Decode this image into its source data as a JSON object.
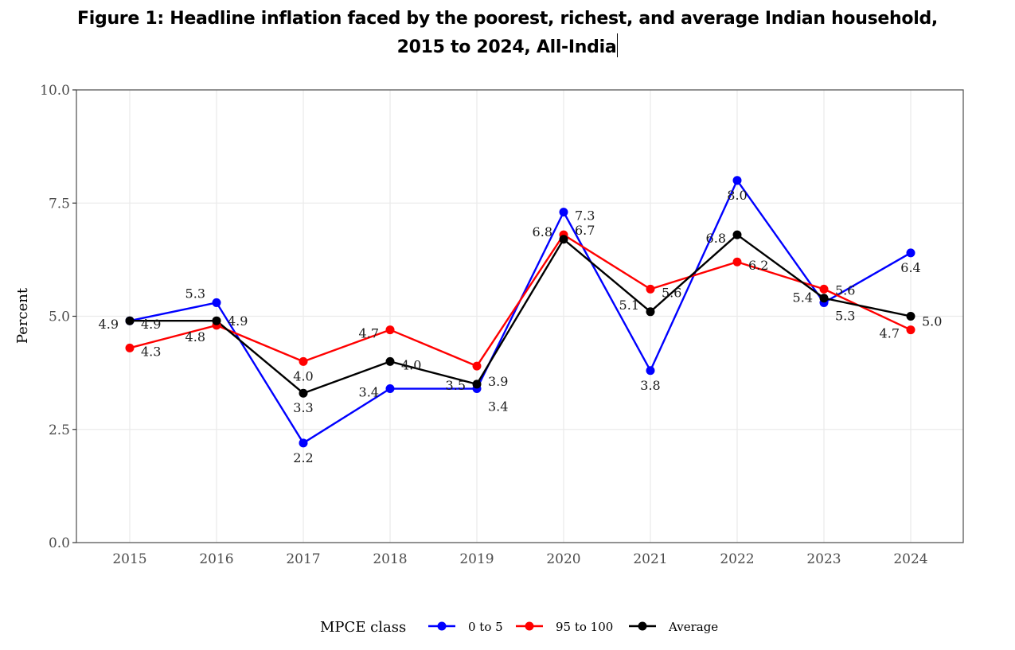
{
  "title": {
    "line1": "Figure 1: Headline inflation faced by the poorest, richest, and average Indian household,",
    "line2": "2015 to 2024, All-India"
  },
  "chart_data": {
    "type": "line",
    "title": "Figure 1: Headline inflation faced by the poorest, richest, and average Indian household, 2015 to 2024, All-India",
    "xlabel": "",
    "ylabel": "Percent",
    "x": [
      2015,
      2016,
      2017,
      2018,
      2019,
      2020,
      2021,
      2022,
      2023,
      2024
    ],
    "x_tick_labels": [
      "2015",
      "2016",
      "2017",
      "2018",
      "2019",
      "2020",
      "2021",
      "2022",
      "2023",
      "2024"
    ],
    "ylim": [
      0,
      10
    ],
    "y_ticks": [
      0,
      2.5,
      5,
      7.5,
      10
    ],
    "y_tick_labels": [
      "0.0",
      "2.5",
      "5.0",
      "7.5",
      "10.0"
    ],
    "grid": true,
    "legend": {
      "title": "MPCE class",
      "placement": "bottom"
    },
    "series": [
      {
        "name": "0 to 5",
        "color": "#0000ff",
        "values": [
          4.9,
          5.3,
          2.2,
          3.4,
          3.4,
          7.3,
          3.8,
          8.0,
          5.3,
          6.4
        ],
        "labels": [
          "4.9",
          "5.3",
          "2.2",
          "3.4",
          "3.4",
          "7.3",
          "3.8",
          "8.0",
          "5.3",
          "6.4"
        ]
      },
      {
        "name": "95 to 100",
        "color": "#ff0000",
        "values": [
          4.3,
          4.8,
          4.0,
          4.7,
          3.9,
          6.8,
          5.6,
          6.2,
          5.6,
          4.7
        ],
        "labels": [
          "4.3",
          "4.8",
          "4.0",
          "4.7",
          "3.9",
          "6.8",
          "5.6",
          "6.2",
          "5.6",
          "4.7"
        ]
      },
      {
        "name": "Average",
        "color": "#000000",
        "values": [
          4.9,
          4.9,
          3.3,
          4.0,
          3.5,
          6.7,
          5.1,
          6.8,
          5.4,
          5.0
        ],
        "labels": [
          "4.9",
          "4.9",
          "3.3",
          "4.0",
          "3.5",
          "6.7",
          "5.1",
          "6.8",
          "5.4",
          "5.0"
        ]
      }
    ]
  }
}
